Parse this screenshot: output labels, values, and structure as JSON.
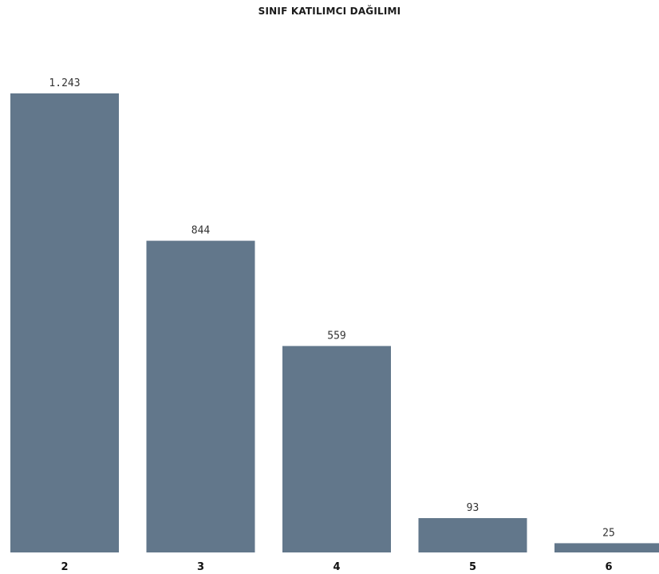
{
  "chart_data": {
    "type": "bar",
    "title": "SINIF KATILIMCI DAĞILIMI",
    "categories": [
      "2",
      "3",
      "4",
      "5",
      "6"
    ],
    "values": [
      1243,
      844,
      559,
      93,
      25
    ],
    "value_labels": [
      "1.243",
      "844",
      "559",
      "93",
      "25"
    ],
    "xlabel": "",
    "ylabel": "",
    "ylim": [
      0,
      1243
    ],
    "grid": false,
    "legend": "none",
    "bar_color": "#62778b"
  }
}
